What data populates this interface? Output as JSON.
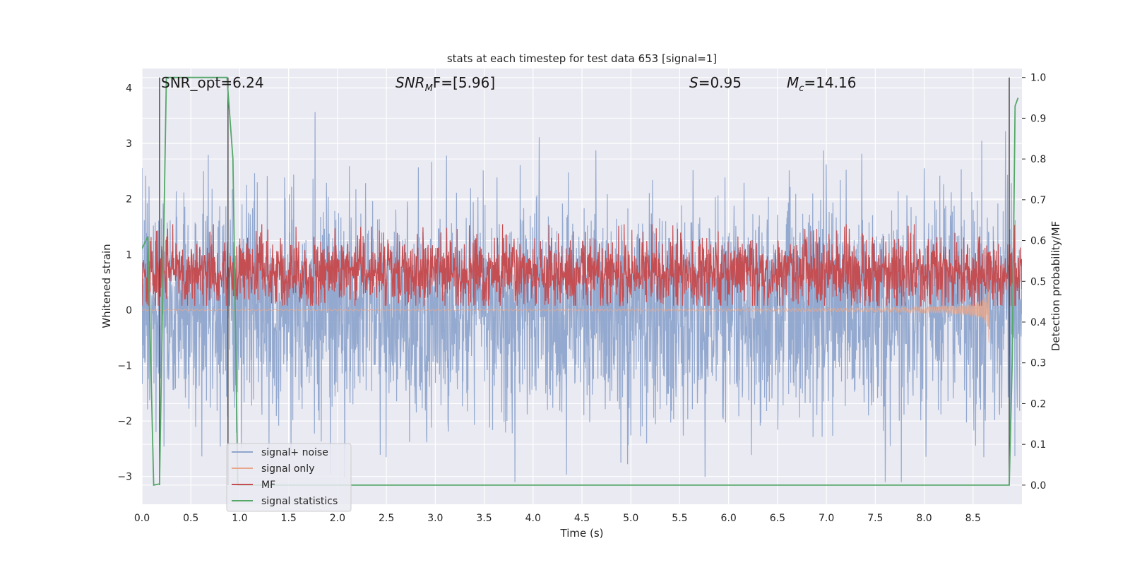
{
  "chart_data": {
    "type": "line",
    "title": "stats at each timestep for test data 653 [signal=1]",
    "xlabel": "Time (s)",
    "ylabel": "Whitened strain",
    "y2label": "Detection probability/MF",
    "xlim": [
      0,
      9.0
    ],
    "ylim": [
      -3.5,
      4.35
    ],
    "y2lim": [
      -0.047,
      1.022
    ],
    "x_ticks": [
      "0.0",
      "0.5",
      "1.0",
      "1.5",
      "2.0",
      "2.5",
      "3.0",
      "3.5",
      "4.0",
      "4.5",
      "5.0",
      "5.5",
      "6.0",
      "6.5",
      "7.0",
      "7.5",
      "8.0",
      "8.5"
    ],
    "y_ticks": [
      "−3",
      "−2",
      "−1",
      "0",
      "1",
      "2",
      "3",
      "4"
    ],
    "y2_ticks": [
      "0.0",
      "0.1",
      "0.2",
      "0.3",
      "0.4",
      "0.5",
      "0.6",
      "0.7",
      "0.8",
      "0.9",
      "1.0"
    ],
    "grid": true,
    "legend_position": "lower-left",
    "annotations": {
      "snr_opt": "SNR_opt=6.24",
      "snr_mf_base": "SNR",
      "snr_mf_sub": "M",
      "snr_mf_rest": "F=[5.96]",
      "s_name": "S",
      "s_rest": "=0.95",
      "mc_base": "M",
      "mc_sub": "c",
      "mc_rest": "=14.16"
    },
    "series": [
      {
        "name": "signal+ noise",
        "color": "#8fa5cc",
        "description_values": "noise ~ N(0,1), range approx -3.1 to 4.0"
      },
      {
        "name": "signal only",
        "color": "#e8a68a",
        "envelope_end": 8.67,
        "envelope_amplitude_end": 1.0
      },
      {
        "name": "MF",
        "color": "#c44e52",
        "baseline": 0.22,
        "spike_x": 8.66,
        "spike_y": 1.0
      },
      {
        "name": "signal statistics",
        "color": "#55a868",
        "x": [
          0.0,
          0.06,
          0.12,
          0.18,
          0.25,
          0.3,
          0.87,
          0.93,
          0.98,
          1.03,
          8.87,
          8.9,
          8.93,
          8.96
        ],
        "y": [
          0.58,
          0.61,
          0.0,
          0.003,
          1.0,
          1.0,
          1.0,
          0.8,
          0.0,
          0.0,
          0.0,
          0.3,
          0.93,
          0.95
        ]
      }
    ],
    "vertical_lines": [
      0.18,
      0.88,
      8.87
    ]
  }
}
